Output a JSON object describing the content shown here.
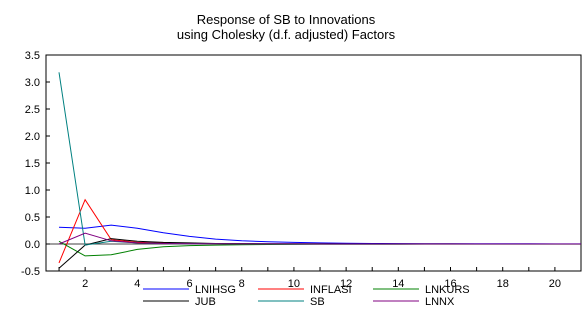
{
  "chart_data": {
    "type": "line",
    "title": "Response of SB to Innovations",
    "subtitle": "using Cholesky (d.f. adjusted) Factors",
    "xlabel": "",
    "ylabel": "",
    "xlim": [
      0.5,
      21
    ],
    "ylim": [
      -0.5,
      3.5
    ],
    "x_ticks": [
      "2",
      "4",
      "6",
      "8",
      "10",
      "12",
      "14",
      "16",
      "18",
      "20"
    ],
    "y_ticks": [
      "-0.5",
      "0.0",
      "0.5",
      "1.0",
      "1.5",
      "2.0",
      "2.5",
      "3.0",
      "3.5"
    ],
    "grid": false,
    "legend_position": "bottom",
    "x": [
      1,
      2,
      3,
      4,
      5,
      6,
      7,
      8,
      9,
      10,
      11,
      12,
      13,
      14,
      15,
      16,
      17,
      18,
      19,
      20,
      21
    ],
    "series": [
      {
        "name": "LNIHSG",
        "color": "#0000ff",
        "values": [
          0.31,
          0.29,
          0.35,
          0.29,
          0.21,
          0.14,
          0.09,
          0.06,
          0.04,
          0.03,
          0.02,
          0.015,
          0.01,
          0.008,
          0.006,
          0.005,
          0.004,
          0.003,
          0.003,
          0.002,
          0.002
        ]
      },
      {
        "name": "INFLASI",
        "color": "#ff0000",
        "values": [
          -0.35,
          0.82,
          0.08,
          0.03,
          0.02,
          0.01,
          0.005,
          0.003,
          0.002,
          0.001,
          0,
          0,
          0,
          0,
          0,
          0,
          0,
          0,
          0,
          0,
          0
        ]
      },
      {
        "name": "LNKURS",
        "color": "#008000",
        "values": [
          0.05,
          -0.22,
          -0.2,
          -0.1,
          -0.05,
          -0.03,
          -0.02,
          -0.015,
          -0.01,
          -0.008,
          -0.006,
          -0.005,
          -0.004,
          -0.003,
          -0.002,
          -0.002,
          -0.001,
          -0.001,
          -0.001,
          -0.001,
          -0.001
        ]
      },
      {
        "name": "JUB",
        "color": "#000000",
        "values": [
          -0.45,
          -0.02,
          0.1,
          0.05,
          0.03,
          0.02,
          0.01,
          0.008,
          0.005,
          0.004,
          0.003,
          0.002,
          0.002,
          0.001,
          0.001,
          0.001,
          0,
          0,
          0,
          0,
          0
        ]
      },
      {
        "name": "SB",
        "color": "#008080",
        "values": [
          3.18,
          -0.02,
          0.05,
          0.02,
          0.01,
          0.005,
          0.003,
          0.002,
          0.001,
          0.001,
          0,
          0,
          0,
          0,
          0,
          0,
          0,
          0,
          0,
          0,
          0
        ]
      },
      {
        "name": "LNNX",
        "color": "#800080",
        "values": [
          0,
          0.2,
          0.06,
          0.02,
          0.01,
          0.005,
          0.003,
          0.002,
          0.001,
          0.001,
          0,
          0,
          0,
          0,
          0,
          0,
          0,
          0,
          0,
          0,
          0
        ]
      }
    ]
  }
}
